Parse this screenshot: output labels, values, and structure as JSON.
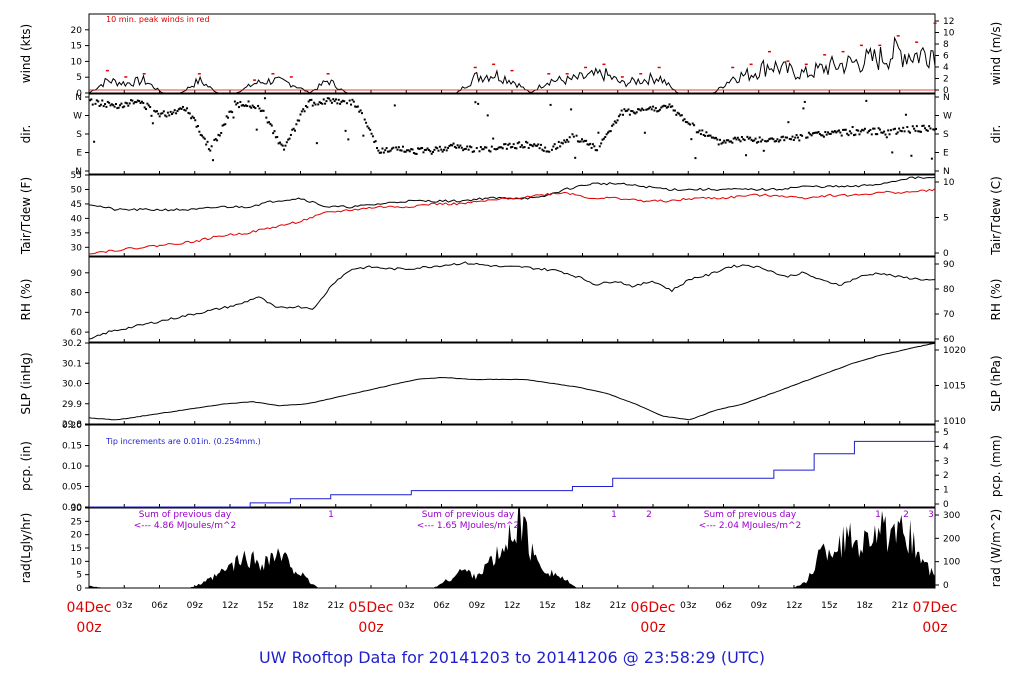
{
  "title": "UW Rooftop Data for 20141203  to  20141206 @ 23:58:29  (UTC)",
  "colors": {
    "text": "#1f1fd0",
    "date_labels": "#e00000",
    "wind_peak": "#e00000",
    "tair": "#000000",
    "tdew": "#e00000",
    "precip": "#1f1fd0",
    "radiation_fill": "#000000",
    "radiation_notes": "#9900cc"
  },
  "time_axis": {
    "tick_labels": [
      "03z",
      "06z",
      "09z",
      "12z",
      "15z",
      "18z",
      "21z",
      "03z",
      "06z",
      "09z",
      "12z",
      "15z",
      "18z",
      "21z",
      "03z",
      "06z",
      "09z",
      "12z",
      "15z",
      "18z",
      "21z"
    ],
    "date_labels": [
      {
        "day": "04Dec",
        "time": "00z"
      },
      {
        "day": "05Dec",
        "time": "00z"
      },
      {
        "day": "06Dec",
        "time": "00z"
      },
      {
        "day": "07Dec",
        "time": "00z"
      }
    ]
  },
  "chart_data": [
    {
      "type": "line",
      "ylabel": "wind (kts)",
      "ylabel_right": "wind (m/s)",
      "ylim": [
        0,
        25
      ],
      "yticks": [
        0,
        5,
        10,
        15,
        20
      ],
      "right_yticks": [
        0,
        2,
        4,
        6,
        8,
        10,
        12
      ],
      "annotation": "10 min. peak winds in red",
      "series": [
        {
          "values": [
            0,
            4,
            3,
            4,
            0,
            0,
            4,
            0,
            0,
            3,
            4,
            3,
            0,
            4,
            0,
            0,
            0,
            0,
            0,
            0,
            0,
            5,
            6,
            4,
            0,
            4,
            4,
            5,
            6,
            3,
            4,
            5,
            0,
            0,
            0,
            5,
            6,
            9,
            7,
            6,
            8,
            9,
            10,
            11,
            13,
            12,
            14
          ]
        },
        {
          "values": [
            0,
            7,
            5,
            6,
            0,
            0,
            6,
            0,
            0,
            4,
            6,
            5,
            0,
            6,
            0,
            0,
            0,
            0,
            0,
            0,
            0,
            8,
            9,
            7,
            0,
            6,
            6,
            8,
            9,
            5,
            6,
            8,
            0,
            0,
            0,
            8,
            9,
            13,
            10,
            9,
            12,
            13,
            15,
            15,
            18,
            16,
            22
          ]
        }
      ]
    },
    {
      "type": "scatter",
      "ylabel": "dir.",
      "ylabel_right": "dir.",
      "yticks": [
        "N",
        "E",
        "S",
        "W",
        "N"
      ]
    },
    {
      "type": "line",
      "ylabel": "Tair/Tdew (F)",
      "ylabel_right": "Tair/Tdew (C)",
      "ylim": [
        27,
        55
      ],
      "yticks": [
        30,
        35,
        40,
        45,
        50,
        55
      ],
      "right_yticks": [
        0,
        5,
        10
      ],
      "series": [
        {
          "values": [
            45,
            43,
            43,
            43,
            43,
            44,
            44,
            46,
            47,
            44,
            44,
            45,
            46,
            46,
            46,
            47,
            47,
            47,
            50,
            52,
            52,
            51,
            50,
            50,
            50,
            50,
            50,
            51,
            51,
            51,
            52,
            54,
            54
          ]
        },
        {
          "values": [
            28,
            29,
            30,
            31,
            32,
            34,
            35,
            37,
            39,
            42,
            43,
            44,
            44,
            45,
            45,
            46,
            47,
            48,
            49,
            47,
            47,
            46,
            46,
            47,
            47,
            48,
            48,
            47,
            48,
            48,
            49,
            49,
            50
          ]
        }
      ]
    },
    {
      "type": "line",
      "ylabel": "RH (%)",
      "ylabel_right": "RH (%)",
      "ylim": [
        55,
        98
      ],
      "yticks": [
        60,
        70,
        80,
        90
      ],
      "right_yticks": [
        60,
        70,
        80,
        90
      ],
      "series": [
        {
          "values": [
            56,
            60,
            62,
            64,
            66,
            68,
            70,
            72,
            74,
            78,
            72,
            73,
            72,
            85,
            92,
            93,
            92,
            92,
            93,
            94,
            95,
            94,
            93,
            93,
            92,
            91,
            88,
            84,
            86,
            83,
            86,
            81,
            87,
            89,
            93,
            94,
            92,
            88,
            90,
            86,
            84,
            88,
            90,
            88,
            87,
            86
          ]
        }
      ]
    },
    {
      "type": "line",
      "ylabel": "SLP (inHg)",
      "ylabel_right": "SLP (hPa)",
      "ylim": [
        29.8,
        30.2
      ],
      "yticks": [
        29.8,
        29.9,
        30.0,
        30.1,
        30.2
      ],
      "right_yticks": [
        1010,
        1015,
        1020
      ],
      "series": [
        {
          "values": [
            29.83,
            29.82,
            29.84,
            29.86,
            29.88,
            29.9,
            29.91,
            29.89,
            29.9,
            29.93,
            29.96,
            29.99,
            30.02,
            30.03,
            30.02,
            30.02,
            30.02,
            30.0,
            29.98,
            29.95,
            29.9,
            29.84,
            29.82,
            29.87,
            29.9,
            29.95,
            30.0,
            30.05,
            30.1,
            30.14,
            30.17,
            30.2
          ]
        }
      ]
    },
    {
      "type": "line",
      "ylabel": "pcp. (in)",
      "ylabel_right": "pcp. (mm)",
      "ylim": [
        0,
        0.2
      ],
      "yticks": [
        0.0,
        0.05,
        0.1,
        0.15,
        0.2
      ],
      "right_yticks": [
        0,
        1,
        2,
        3,
        4,
        5
      ],
      "annotation": "Tip increments are 0.01in. (0.254mm.)",
      "series": [
        {
          "values": [
            0,
            0,
            0,
            0,
            0.01,
            0.02,
            0.03,
            0.03,
            0.04,
            0.04,
            0.04,
            0.04,
            0.05,
            0.07,
            0.07,
            0.07,
            0.07,
            0.09,
            0.13,
            0.16,
            0.16,
            0.16
          ]
        }
      ]
    },
    {
      "type": "area",
      "ylabel": "rad(Lgly/hr)",
      "ylabel_right": "rad (W/m^2)",
      "ylim": [
        0,
        30
      ],
      "yticks": [
        0,
        5,
        10,
        15,
        20,
        25,
        30
      ],
      "right_yticks": [
        0,
        100,
        200,
        300
      ],
      "notes": [
        {
          "line1": "Sum of previous day",
          "line2": "<--- 4.86 MJoules/m^2"
        },
        {
          "line1": "Sum of previous day",
          "line2": "<--- 1.65 MJoules/m^2"
        },
        {
          "line1": "Sum of previous day",
          "line2": "<--- 2.04 MJoules/m^2"
        }
      ],
      "marks": [
        "1",
        "1",
        "2",
        "1",
        "2",
        "3"
      ],
      "series": [
        {
          "values": [
            1,
            0,
            0,
            0,
            0,
            0,
            0,
            0,
            2,
            5,
            9,
            12,
            10,
            13,
            10,
            4,
            0,
            0,
            0,
            0,
            0,
            0,
            0,
            0,
            0,
            3,
            7,
            5,
            10,
            15,
            29,
            12,
            7,
            4,
            0,
            0,
            0,
            0,
            0,
            0,
            0,
            0,
            0,
            0,
            0,
            0,
            0,
            0,
            0,
            0,
            2,
            14,
            16,
            20,
            18,
            25,
            18,
            23,
            12,
            4
          ]
        }
      ]
    }
  ]
}
